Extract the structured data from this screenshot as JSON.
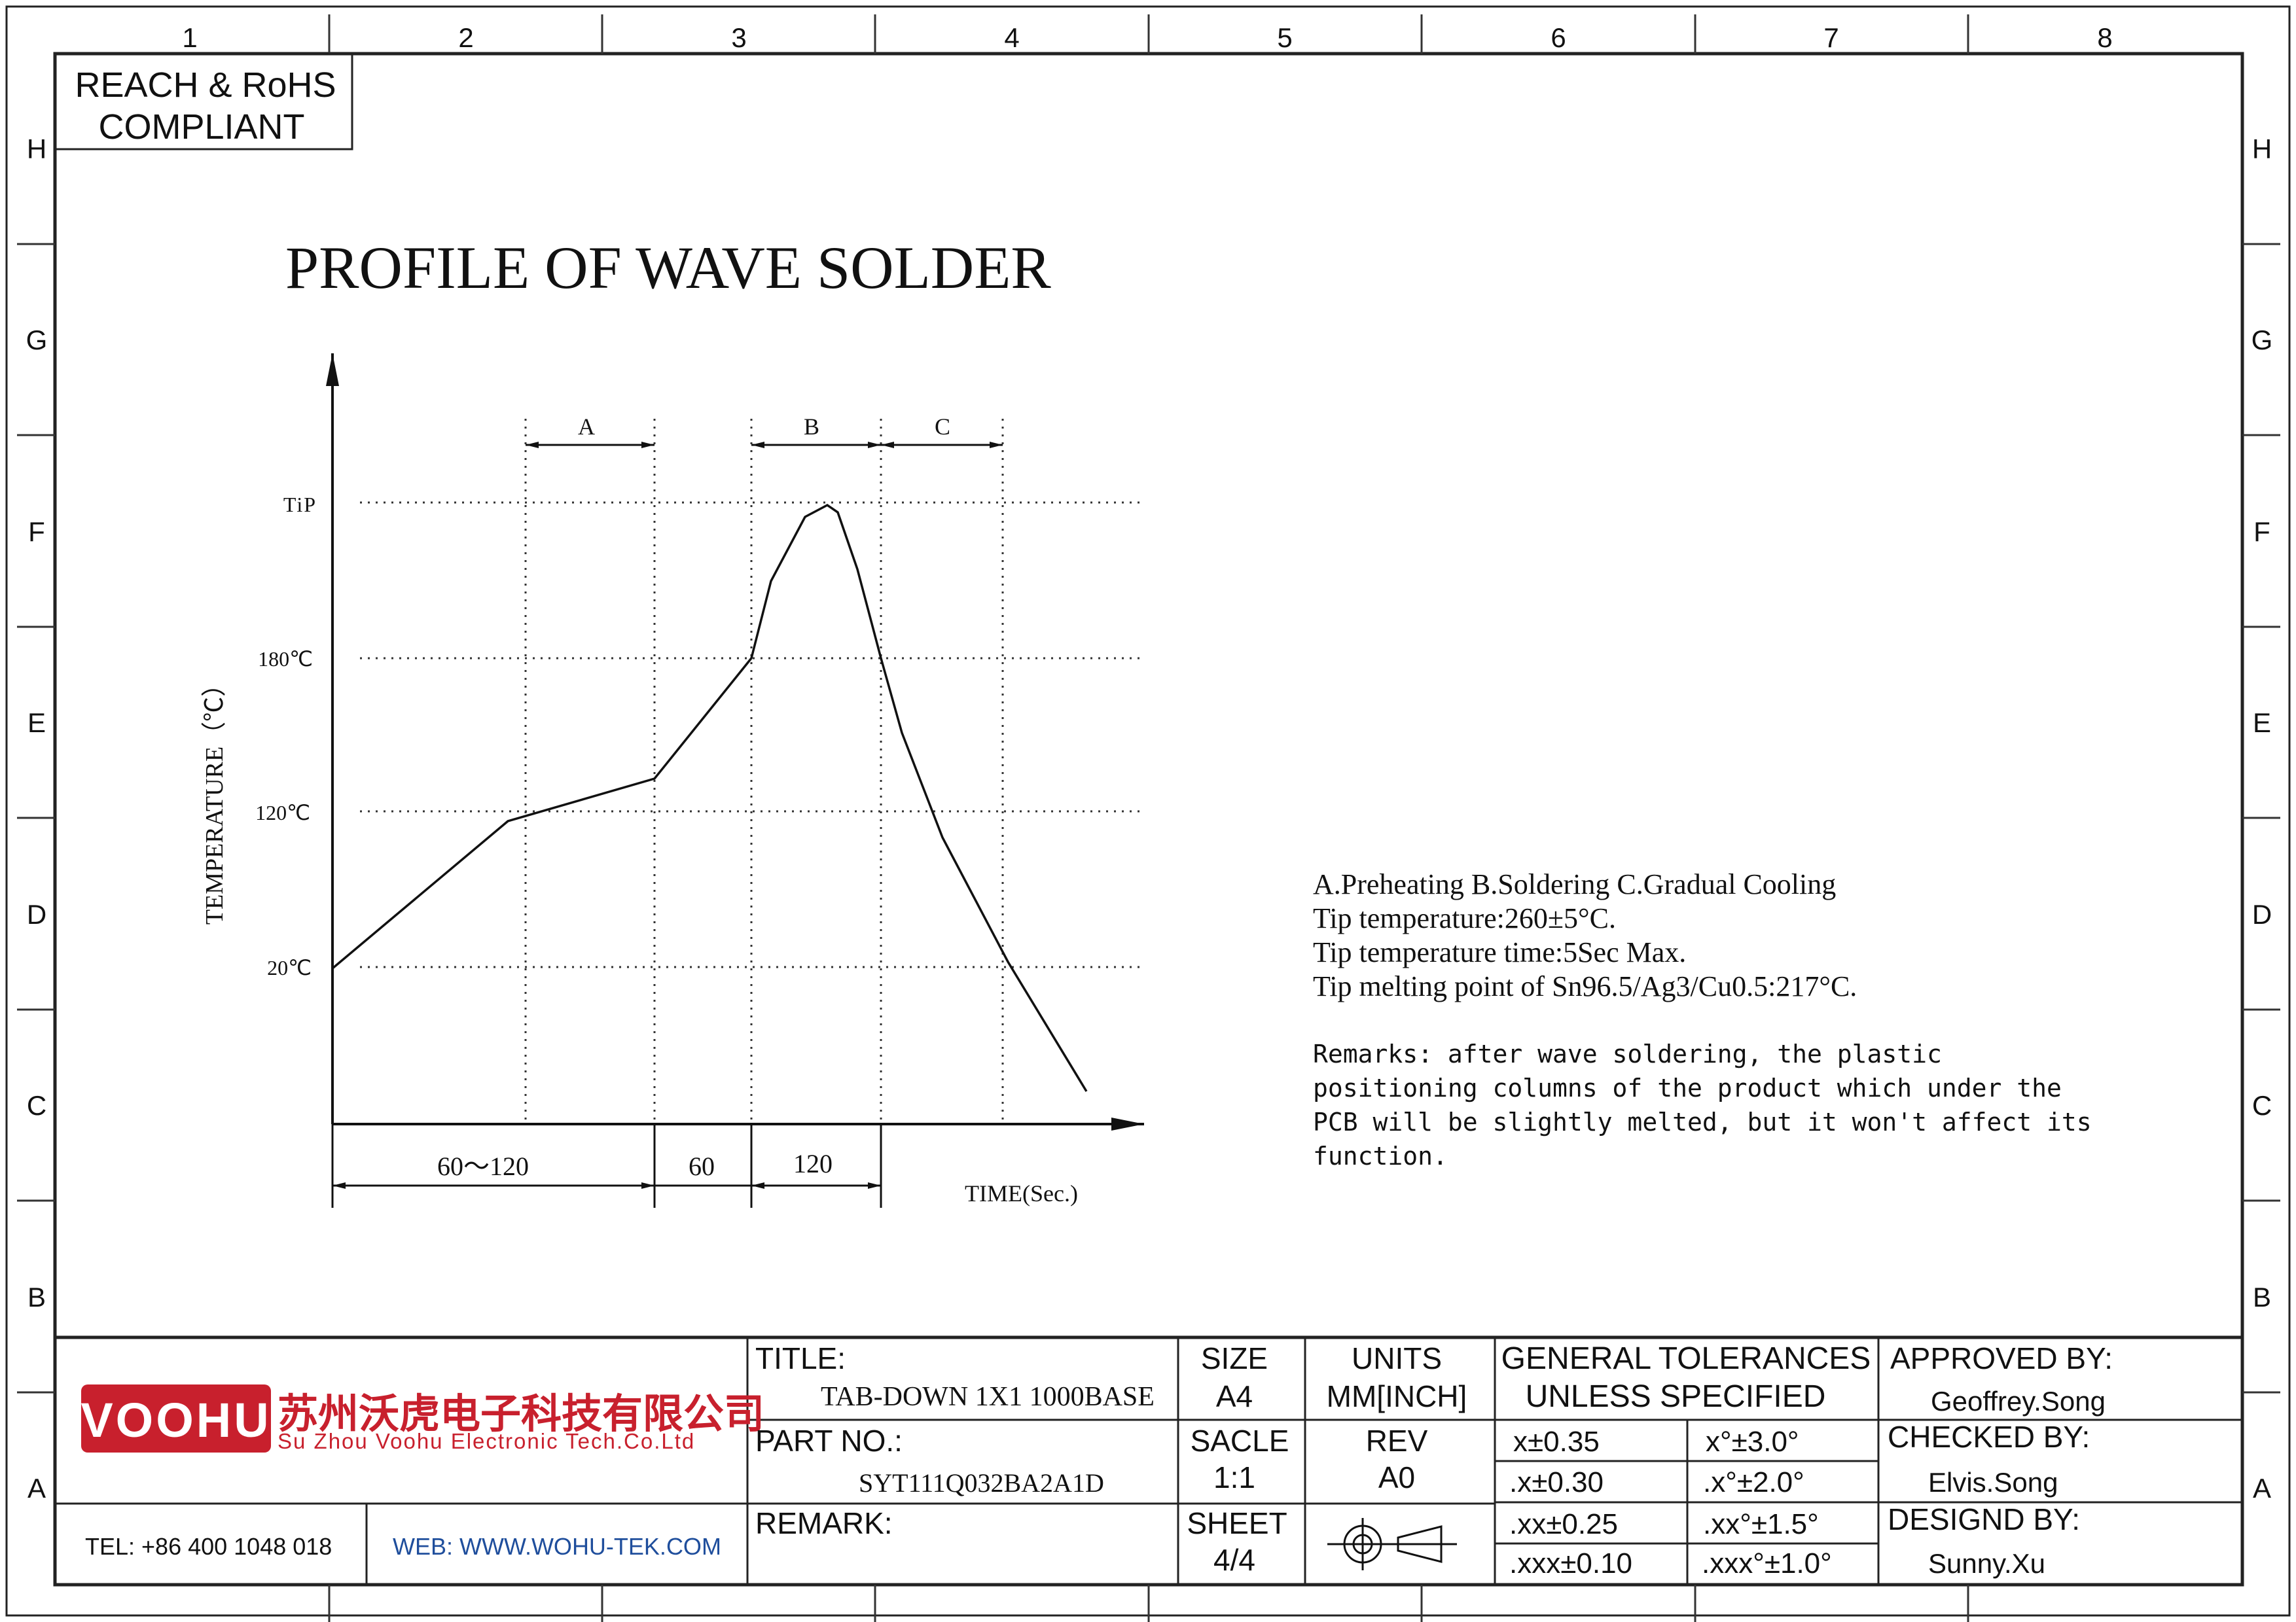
{
  "frame": {
    "columns": [
      "1",
      "2",
      "3",
      "4",
      "5",
      "6",
      "7",
      "8"
    ],
    "rows": [
      "H",
      "G",
      "F",
      "E",
      "D",
      "C",
      "B",
      "A"
    ]
  },
  "compliance": {
    "line1": "REACH & RoHS",
    "line2": "COMPLIANT"
  },
  "drawing_title": "PROFILE OF WAVE SOLDER",
  "chart_data": {
    "type": "line",
    "title": "PROFILE OF WAVE SOLDER",
    "ylabel": "TEMPERATURE（℃）",
    "xlabel": "TIME(Sec.)",
    "y_ticks": [
      "TiP",
      "180℃",
      "120℃",
      "20℃"
    ],
    "zones": [
      {
        "name": "A",
        "label": "A"
      },
      {
        "name": "B",
        "label": "B"
      },
      {
        "name": "C",
        "label": "C"
      }
    ],
    "durations": [
      "60～120",
      "60",
      "120"
    ],
    "grid": "dotted"
  },
  "notes": {
    "legend": "A.Preheating  B.Soldering  C.Gradual Cooling",
    "tip_temp": "Tip temperature:260±5°C.",
    "tip_time": "Tip temperature time:5Sec Max.",
    "melting": "Tip melting point of Sn96.5/Ag3/Cu0.5:217°C.",
    "remarks": [
      "Remarks: after wave soldering, the plastic",
      "positioning columns of the product  which under the",
      "PCB will be slightly melted, but it won't affect its",
      "function."
    ]
  },
  "company": {
    "logo_text": "VOOHU",
    "name_cn": "苏州沃虎电子科技有限公司",
    "name_en": "Su Zhou Voohu Electronic Tech.Co.Ltd",
    "tel": "TEL: +86 400 1048 018",
    "web": "WEB: WWW.WOHU-TEK.COM",
    "brand_color": "#c8202d",
    "web_color": "#1f4e9c"
  },
  "title_block": {
    "title_label": "TITLE:",
    "title_value": "TAB-DOWN 1X1 1000BASE",
    "part_label": "PART NO.:",
    "part_value": "SYT111Q032BA2A1D",
    "remark_label": "REMARK:",
    "size_label": "SIZE",
    "size_value": "A4",
    "units_label": "UNITS",
    "units_value": "MM[INCH]",
    "scale_label": "SACLE",
    "scale_value": "1:1",
    "rev_label": "REV",
    "rev_value": "A0",
    "sheet_label": "SHEET",
    "sheet_value": "4/4",
    "tol_title1": "GENERAL TOLERANCES",
    "tol_title2": "UNLESS SPECIFIED",
    "tolerances": [
      [
        "x±0.35",
        "x°±3.0°"
      ],
      [
        ".x±0.30",
        ".x°±2.0°"
      ],
      [
        ".xx±0.25",
        ".xx°±1.5°"
      ],
      [
        ".xxx±0.10",
        ".xxx°±1.0°"
      ]
    ],
    "approved_label": "APPROVED BY:",
    "approved_value": "Geoffrey.Song",
    "checked_label": "CHECKED BY:",
    "checked_value": "Elvis.Song",
    "designed_label": "DESIGND BY:",
    "designed_value": "Sunny.Xu"
  }
}
